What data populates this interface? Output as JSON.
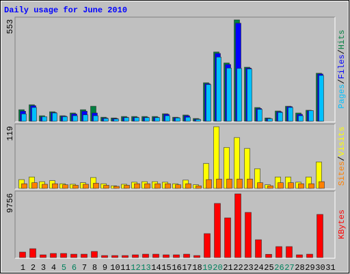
{
  "chart_data": [
    {
      "type": "bar",
      "title": "Daily usage for June 2010",
      "series": [
        {
          "name": "Hits",
          "color": "#008040",
          "values": [
            63,
            90,
            30,
            52,
            30,
            45,
            63,
            82,
            22,
            18,
            26,
            26,
            26,
            26,
            41,
            22,
            34,
            15,
            210,
            378,
            318,
            553,
            295,
            75,
            18,
            56,
            82,
            45,
            60,
            262,
            0
          ]
        },
        {
          "name": "Files",
          "color": "#0000ff",
          "values": [
            55,
            85,
            25,
            48,
            28,
            40,
            55,
            45,
            18,
            15,
            22,
            22,
            22,
            22,
            38,
            20,
            30,
            12,
            205,
            370,
            310,
            535,
            290,
            70,
            15,
            52,
            80,
            38,
            58,
            258,
            0
          ]
        },
        {
          "name": "Pages",
          "color": "#00c0ff",
          "values": [
            40,
            75,
            25,
            45,
            25,
            30,
            35,
            30,
            15,
            12,
            20,
            20,
            20,
            20,
            30,
            18,
            22,
            10,
            200,
            350,
            290,
            288,
            285,
            65,
            14,
            48,
            75,
            30,
            58,
            250,
            0
          ]
        }
      ],
      "ylim": [
        0,
        553
      ],
      "yticks": [
        553
      ],
      "legend_separator": "/"
    },
    {
      "type": "bar",
      "series": [
        {
          "name": "Visits",
          "color": "#ffff00",
          "values": [
            17,
            22,
            13,
            15,
            9,
            8,
            11,
            21,
            9,
            5,
            8,
            12,
            13,
            13,
            12,
            9,
            16,
            7,
            48,
            119,
            79,
            98,
            77,
            38,
            7,
            22,
            22,
            12,
            22,
            51,
            0
          ]
        },
        {
          "name": "Sites",
          "color": "#ff8000",
          "values": [
            9,
            11,
            8,
            9,
            7,
            6,
            8,
            10,
            6,
            4,
            6,
            9,
            9,
            9,
            9,
            7,
            9,
            5,
            17,
            18,
            18,
            18,
            18,
            11,
            5,
            11,
            11,
            9,
            9,
            13,
            0
          ]
        }
      ],
      "ylim": [
        0,
        119
      ],
      "yticks": [
        119
      ],
      "legend_separator": "/"
    },
    {
      "type": "bar",
      "categories": [
        "1",
        "2",
        "3",
        "4",
        "5",
        "6",
        "7",
        "8",
        "9",
        "10",
        "11",
        "12",
        "13",
        "14",
        "15",
        "16",
        "17",
        "18",
        "19",
        "20",
        "21",
        "22",
        "23",
        "24",
        "25",
        "26",
        "27",
        "28",
        "29",
        "30",
        "31"
      ],
      "category_colors": [
        "#000000",
        "#000000",
        "#000000",
        "#000000",
        "#00805c",
        "#00805c",
        "#000000",
        "#000000",
        "#000000",
        "#000000",
        "#000000",
        "#00805c",
        "#00805c",
        "#000000",
        "#000000",
        "#000000",
        "#000000",
        "#000000",
        "#00805c",
        "#00805c",
        "#000000",
        "#000000",
        "#000000",
        "#000000",
        "#000000",
        "#00805c",
        "#00805c",
        "#000000",
        "#000000",
        "#000000",
        "#000000"
      ],
      "series": [
        {
          "name": "KBytes",
          "color": "#ff0000",
          "values": [
            840,
            1360,
            420,
            630,
            630,
            520,
            520,
            940,
            310,
            310,
            310,
            420,
            520,
            520,
            420,
            420,
            520,
            310,
            3670,
            8290,
            6080,
            9756,
            6920,
            2730,
            500,
            1680,
            1680,
            420,
            520,
            6610,
            0
          ]
        }
      ],
      "ylim": [
        0,
        9756
      ],
      "yticks": [
        9756
      ]
    }
  ]
}
